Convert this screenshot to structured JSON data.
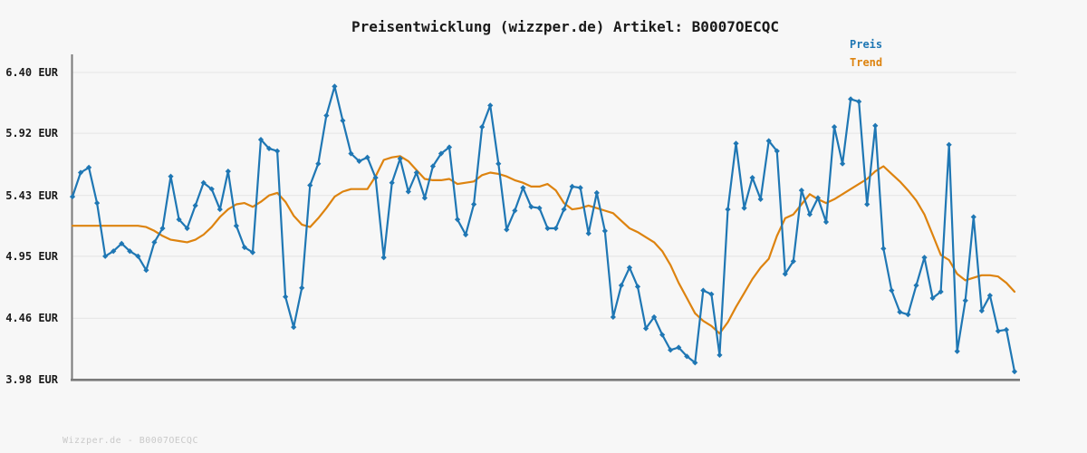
{
  "header": {
    "title": "Preisentwicklung (wizzper.de) Artikel: B0007OECQC"
  },
  "legend": {
    "items": [
      {
        "label": "Preis",
        "color": "#1f77b4"
      },
      {
        "label": "Trend",
        "color": "#dd830f"
      }
    ]
  },
  "footer": {
    "watermark": "Wizzper.de - B0007OECQC"
  },
  "colors": {
    "background": "#f7f7f7",
    "gridline": "#e8e8e8",
    "spine": "#7a7a7a",
    "price": "#1f77b4",
    "trend": "#dd830f"
  },
  "chart_data": {
    "type": "line",
    "title": "Preisentwicklung (wizzper.de) Artikel: B0007OECQC",
    "xlabel": "",
    "ylabel": "",
    "x_axis_labels": "none (time axis unlabeled)",
    "grid": "horizontal",
    "legend_position": "top-right",
    "ylim": [
      3.98,
      6.4
    ],
    "currency": "EUR",
    "y_ticks": [
      {
        "label": "6.40 EUR",
        "value": 6.4
      },
      {
        "label": "5.92 EUR",
        "value": 5.92
      },
      {
        "label": "5.43 EUR",
        "value": 5.43
      },
      {
        "label": "4.95 EUR",
        "value": 4.95
      },
      {
        "label": "4.46 EUR",
        "value": 4.46
      },
      {
        "label": "3.98 EUR",
        "value": 3.98
      }
    ],
    "series": [
      {
        "name": "Preis",
        "color": "#1f77b4",
        "marker": "diamond",
        "values": [
          5.42,
          5.61,
          5.65,
          5.37,
          4.95,
          4.99,
          5.05,
          4.99,
          4.95,
          4.84,
          5.06,
          5.17,
          5.58,
          5.24,
          5.17,
          5.35,
          5.53,
          5.48,
          5.32,
          5.62,
          5.19,
          5.02,
          4.98,
          5.87,
          5.8,
          5.78,
          4.63,
          4.39,
          4.7,
          5.51,
          5.68,
          6.06,
          6.29,
          6.02,
          5.76,
          5.7,
          5.73,
          5.57,
          4.94,
          5.53,
          5.72,
          5.46,
          5.61,
          5.41,
          5.66,
          5.76,
          5.81,
          5.24,
          5.12,
          5.36,
          5.97,
          6.14,
          5.68,
          5.16,
          5.31,
          5.49,
          5.34,
          5.33,
          5.17,
          5.17,
          5.32,
          5.5,
          5.49,
          5.13,
          5.45,
          5.15,
          4.47,
          4.72,
          4.86,
          4.71,
          4.38,
          4.47,
          4.33,
          4.21,
          4.23,
          4.16,
          4.11,
          4.68,
          4.65,
          4.17,
          5.32,
          5.84,
          5.33,
          5.57,
          5.4,
          5.86,
          5.78,
          4.81,
          4.91,
          5.47,
          5.28,
          5.41,
          5.22,
          5.97,
          5.68,
          6.19,
          6.17,
          5.36,
          5.98,
          5.01,
          4.68,
          4.51,
          4.49,
          4.72,
          4.94,
          4.62,
          4.67,
          5.83,
          4.2,
          4.6,
          5.26,
          4.52,
          4.64,
          4.36,
          4.37,
          4.04
        ]
      },
      {
        "name": "Trend",
        "color": "#dd830f",
        "marker": "none",
        "values": [
          5.19,
          5.19,
          5.19,
          5.19,
          5.19,
          5.19,
          5.19,
          5.19,
          5.19,
          5.18,
          5.15,
          5.11,
          5.08,
          5.07,
          5.06,
          5.08,
          5.12,
          5.18,
          5.26,
          5.32,
          5.36,
          5.37,
          5.34,
          5.38,
          5.43,
          5.45,
          5.38,
          5.27,
          5.2,
          5.18,
          5.25,
          5.33,
          5.42,
          5.46,
          5.48,
          5.48,
          5.48,
          5.58,
          5.71,
          5.73,
          5.74,
          5.7,
          5.63,
          5.56,
          5.55,
          5.55,
          5.56,
          5.52,
          5.53,
          5.54,
          5.59,
          5.61,
          5.6,
          5.58,
          5.55,
          5.53,
          5.5,
          5.5,
          5.52,
          5.47,
          5.37,
          5.32,
          5.33,
          5.35,
          5.33,
          5.31,
          5.29,
          5.23,
          5.17,
          5.14,
          5.1,
          5.06,
          4.99,
          4.88,
          4.74,
          4.62,
          4.5,
          4.44,
          4.4,
          4.34,
          4.43,
          4.55,
          4.66,
          4.77,
          4.86,
          4.93,
          5.11,
          5.25,
          5.28,
          5.36,
          5.44,
          5.4,
          5.37,
          5.4,
          5.44,
          5.48,
          5.52,
          5.56,
          5.62,
          5.66,
          5.6,
          5.54,
          5.47,
          5.39,
          5.28,
          5.12,
          4.96,
          4.92,
          4.81,
          4.76,
          4.78,
          4.8,
          4.8,
          4.79,
          4.74,
          4.67
        ]
      }
    ]
  }
}
